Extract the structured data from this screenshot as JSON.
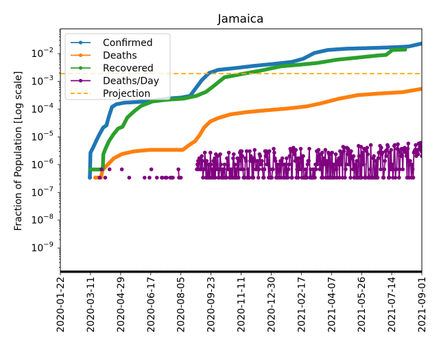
{
  "chart_data": {
    "type": "line",
    "title": "Jamaica",
    "xlabel": "",
    "ylabel": "Fraction of Population [Log scale]",
    "yscale": "log",
    "ylim": [
      1.3e-10,
      0.078
    ],
    "xlim": [
      "2020-01-22",
      "2021-09-01"
    ],
    "grid": false,
    "legend_position": "top-left",
    "x_ticks": [
      "2020-01-22",
      "2020-03-11",
      "2020-04-29",
      "2020-06-17",
      "2020-08-05",
      "2020-09-23",
      "2020-11-11",
      "2020-12-30",
      "2021-02-17",
      "2021-04-07",
      "2021-05-26",
      "2021-07-14",
      "2021-09-01"
    ],
    "y_ticks": [
      {
        "value": 1e-09,
        "base": "10",
        "exp": "−9"
      },
      {
        "value": 1e-08,
        "base": "10",
        "exp": "−8"
      },
      {
        "value": 1e-07,
        "base": "10",
        "exp": "−7"
      },
      {
        "value": 1e-06,
        "base": "10",
        "exp": "−6"
      },
      {
        "value": 1e-05,
        "base": "10",
        "exp": "−5"
      },
      {
        "value": 0.0001,
        "base": "10",
        "exp": "−4"
      },
      {
        "value": 0.001,
        "base": "10",
        "exp": "−3"
      },
      {
        "value": 0.01,
        "base": "10",
        "exp": "−2"
      }
    ],
    "series": [
      {
        "name": "Confirmed",
        "color": "#1f77b4",
        "style": "line-markers",
        "points": [
          [
            "2020-03-10",
            3.4e-07
          ],
          [
            "2020-03-11",
            2.7e-06
          ],
          [
            "2020-03-15",
            4e-06
          ],
          [
            "2020-03-20",
            7e-06
          ],
          [
            "2020-03-26",
            1.3e-05
          ],
          [
            "2020-04-01",
            2.2e-05
          ],
          [
            "2020-04-06",
            2.6e-05
          ],
          [
            "2020-04-10",
            5.5e-05
          ],
          [
            "2020-04-15",
            0.00012
          ],
          [
            "2020-04-22",
            0.00015
          ],
          [
            "2020-05-05",
            0.00017
          ],
          [
            "2020-05-25",
            0.00018
          ],
          [
            "2020-06-20",
            0.0002
          ],
          [
            "2020-07-15",
            0.00024
          ],
          [
            "2020-08-05",
            0.00026
          ],
          [
            "2020-08-20",
            0.0003
          ],
          [
            "2020-08-30",
            0.0006
          ],
          [
            "2020-09-08",
            0.0011
          ],
          [
            "2020-09-20",
            0.002
          ],
          [
            "2020-10-05",
            0.0026
          ],
          [
            "2020-11-01",
            0.003
          ],
          [
            "2020-12-01",
            0.0036
          ],
          [
            "2021-01-01",
            0.0042
          ],
          [
            "2021-02-01",
            0.005
          ],
          [
            "2021-02-20",
            0.0065
          ],
          [
            "2021-03-10",
            0.0105
          ],
          [
            "2021-04-01",
            0.0135
          ],
          [
            "2021-05-01",
            0.015
          ],
          [
            "2021-06-15",
            0.016
          ],
          [
            "2021-07-20",
            0.017
          ],
          [
            "2021-08-10",
            0.018
          ],
          [
            "2021-09-01",
            0.023
          ]
        ]
      },
      {
        "name": "Deaths",
        "color": "#ff7f0e",
        "style": "line-markers",
        "points": [
          [
            "2020-03-19",
            3.4e-07
          ],
          [
            "2020-03-28",
            3.4e-07
          ],
          [
            "2020-03-31",
            6.7e-07
          ],
          [
            "2020-04-08",
            1e-06
          ],
          [
            "2020-04-18",
            1.7e-06
          ],
          [
            "2020-05-01",
            2.4e-06
          ],
          [
            "2020-05-20",
            3e-06
          ],
          [
            "2020-06-15",
            3.4e-06
          ],
          [
            "2020-08-08",
            3.4e-06
          ],
          [
            "2020-08-18",
            5e-06
          ],
          [
            "2020-08-28",
            7e-06
          ],
          [
            "2020-09-05",
            1.2e-05
          ],
          [
            "2020-09-12",
            2.2e-05
          ],
          [
            "2020-09-22",
            3.6e-05
          ],
          [
            "2020-10-05",
            4.8e-05
          ],
          [
            "2020-10-25",
            6.5e-05
          ],
          [
            "2020-11-20",
            7.8e-05
          ],
          [
            "2020-12-20",
            9e-05
          ],
          [
            "2021-01-25",
            0.000105
          ],
          [
            "2021-02-25",
            0.000125
          ],
          [
            "2021-03-20",
            0.00016
          ],
          [
            "2021-04-20",
            0.00024
          ],
          [
            "2021-05-20",
            0.00032
          ],
          [
            "2021-06-20",
            0.00036
          ],
          [
            "2021-08-01",
            0.00041
          ],
          [
            "2021-09-01",
            0.00054
          ]
        ]
      },
      {
        "name": "Recovered",
        "color": "#2ca02c",
        "style": "line-markers",
        "points": [
          [
            "2020-03-11",
            6.7e-07
          ],
          [
            "2020-03-31",
            6.7e-07
          ],
          [
            "2020-04-01",
            2.4e-06
          ],
          [
            "2020-04-05",
            4e-06
          ],
          [
            "2020-04-10",
            7e-06
          ],
          [
            "2020-04-18",
            1.3e-05
          ],
          [
            "2020-04-25",
            2e-05
          ],
          [
            "2020-05-02",
            2.3e-05
          ],
          [
            "2020-05-10",
            5e-05
          ],
          [
            "2020-05-20",
            8e-05
          ],
          [
            "2020-06-01",
            0.00013
          ],
          [
            "2020-06-20",
            0.00019
          ],
          [
            "2020-07-15",
            0.00022
          ],
          [
            "2020-08-10",
            0.00024
          ],
          [
            "2020-08-30",
            0.0003
          ],
          [
            "2020-09-15",
            0.00042
          ],
          [
            "2020-09-28",
            0.0007
          ],
          [
            "2020-10-15",
            0.0014
          ],
          [
            "2020-11-10",
            0.0018
          ],
          [
            "2020-12-15",
            0.0025
          ],
          [
            "2021-01-15",
            0.0035
          ],
          [
            "2021-02-15",
            0.004
          ],
          [
            "2021-03-15",
            0.0046
          ],
          [
            "2021-04-15",
            0.006
          ],
          [
            "2021-05-15",
            0.007
          ],
          [
            "2021-06-20",
            0.0085
          ],
          [
            "2021-07-05",
            0.009
          ],
          [
            "2021-07-15",
            0.0135
          ],
          [
            "2021-08-05",
            0.014
          ]
        ]
      },
      {
        "name": "Deaths/Day",
        "color": "#800080",
        "style": "line-markers",
        "note": "noisy daily series, ~3.4e-7 to ~1e-5",
        "range": [
          3.4e-07,
          1.1e-05
        ]
      },
      {
        "name": "Projection",
        "color": "#ffa500",
        "style": "dashed",
        "value": 0.0019
      }
    ]
  }
}
